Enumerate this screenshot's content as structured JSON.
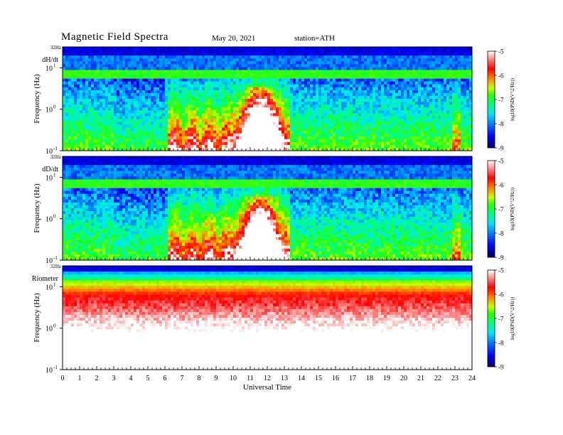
{
  "header": {
    "title": "Magnetic Field Spectra",
    "date": "May 20, 2021",
    "station": "station=ATH"
  },
  "chart_data": [
    {
      "type": "heatmap",
      "panel_label": "dH/dt",
      "ylabel": "Frequency (Hz)",
      "y_scale": "log",
      "y_ticks": [
        {
          "value": 0.1,
          "base": "10",
          "exp": "-1"
        },
        {
          "value": 1,
          "base": "10",
          "exp": "0"
        },
        {
          "value": 10,
          "base": "10",
          "exp": "1"
        }
      ],
      "y_top_label": "32Hz",
      "ylim": [
        0.1,
        32
      ],
      "xlim": [
        0,
        24
      ],
      "colorbar": {
        "label": "log10(PSD(V^2/Hz))",
        "ticks": [
          "-5",
          "-6",
          "-7",
          "-8",
          "-9"
        ],
        "range": [
          -9,
          -5
        ]
      },
      "activity_profile": "broadband enhancement between 6 and 13 UT peaking near 11.5 UT"
    },
    {
      "type": "heatmap",
      "panel_label": "dD/dt",
      "ylabel": "Frequency (Hz)",
      "y_scale": "log",
      "y_ticks": [
        {
          "value": 0.1,
          "base": "10",
          "exp": "-1"
        },
        {
          "value": 1,
          "base": "10",
          "exp": "0"
        },
        {
          "value": 10,
          "base": "10",
          "exp": "1"
        }
      ],
      "y_top_label": "32Hz",
      "ylim": [
        0.1,
        32
      ],
      "xlim": [
        0,
        24
      ],
      "colorbar": {
        "label": "log10(PSD(V^2/Hz))",
        "ticks": [
          "-5",
          "-6",
          "-7",
          "-8",
          "-9"
        ],
        "range": [
          -9,
          -5
        ]
      },
      "activity_profile": "broadband enhancement between 6 and 13 UT peaking near 11.5 UT"
    },
    {
      "type": "heatmap",
      "panel_label": "Riometer",
      "ylabel": "Frequency (Hz)",
      "y_scale": "log",
      "y_ticks": [
        {
          "value": 0.1,
          "base": "10",
          "exp": "-1"
        },
        {
          "value": 1,
          "base": "10",
          "exp": "0"
        },
        {
          "value": 10,
          "base": "10",
          "exp": "1"
        }
      ],
      "y_top_label": "32Hz",
      "ylim": [
        0.1,
        32
      ],
      "xlim": [
        0,
        24
      ],
      "xlabel": "Universal Time",
      "x_ticks": [
        "0",
        "1",
        "2",
        "3",
        "4",
        "5",
        "6",
        "7",
        "8",
        "9",
        "10",
        "11",
        "12",
        "13",
        "14",
        "15",
        "16",
        "17",
        "18",
        "19",
        "20",
        "21",
        "22",
        "23",
        "24"
      ],
      "colorbar": {
        "label": "log10(PSD(V^2/Hz))",
        "ticks": [
          "-5",
          "-6",
          "-7",
          "-8",
          "-9"
        ],
        "range": [
          -9,
          -5
        ]
      },
      "activity_profile": "high power (red/white) below ~6 Hz throughout the day"
    }
  ],
  "colors": {
    "colormap": [
      "#000066",
      "#0000ff",
      "#0080ff",
      "#00e5ff",
      "#00ff80",
      "#30ff00",
      "#c8ff00",
      "#ff8000",
      "#ff0000",
      "#ffffff"
    ]
  }
}
